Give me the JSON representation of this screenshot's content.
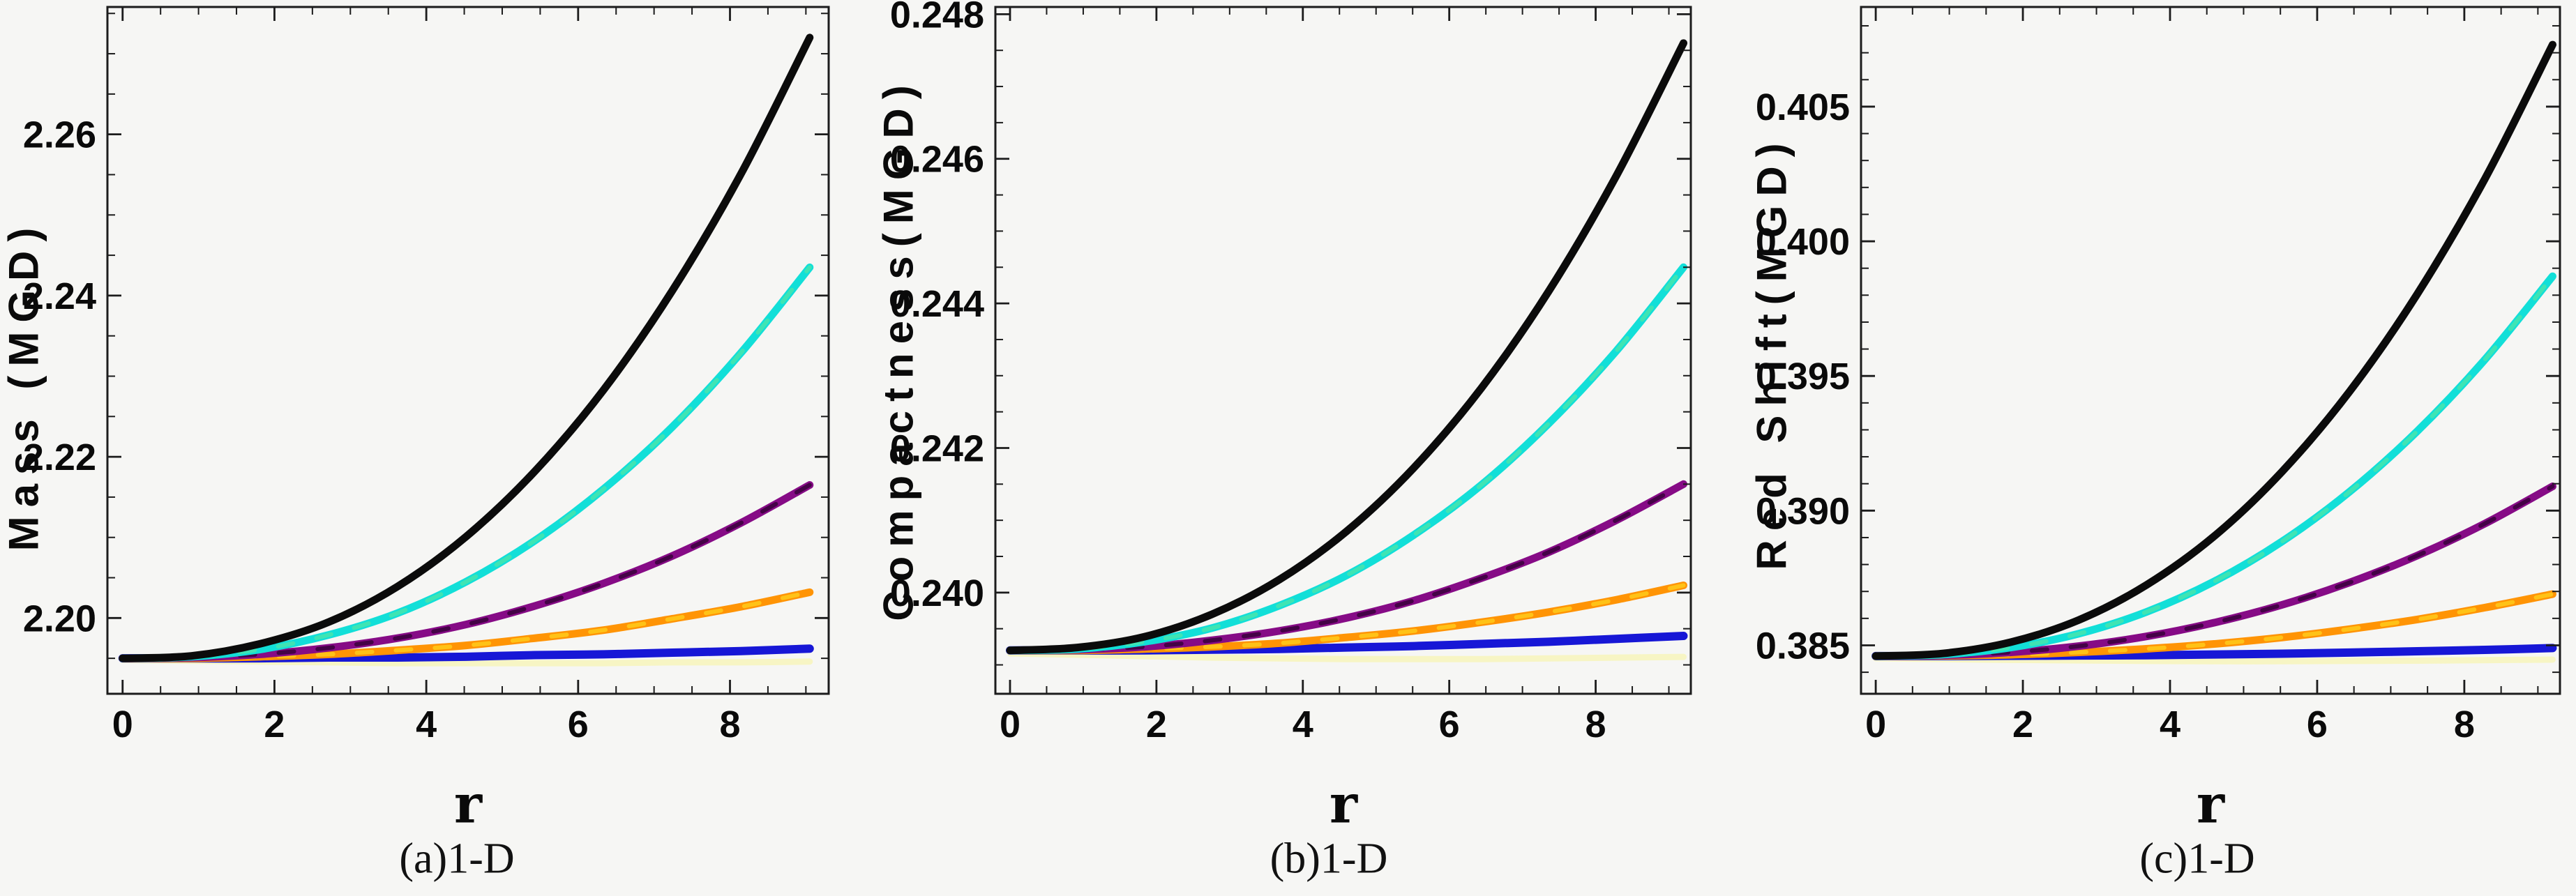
{
  "page": {
    "background": "#f6f6f4",
    "frame_color": "#1c1c1c",
    "text_color": "#0a0a0a"
  },
  "chart_data": [
    {
      "type": "line",
      "caption": "(a)1-D",
      "xlabel": "r",
      "ylabel": "Mass (MGD)",
      "legend": "none",
      "grid": false,
      "xlim": [
        -0.2,
        9.3
      ],
      "ylim": [
        2.1906,
        2.2758
      ],
      "xticks": {
        "major": [
          0,
          2,
          4,
          6,
          8
        ],
        "labels": [
          "0",
          "2",
          "4",
          "6",
          "8"
        ],
        "minor_step": 0.5,
        "major_step": 2
      },
      "yticks": {
        "major": [
          2.2,
          2.22,
          2.24,
          2.26
        ],
        "labels": [
          "2.20",
          "2.22",
          "2.24",
          "2.26"
        ],
        "minor_step": 0.005,
        "major_step": 0.02
      },
      "x": [
        0,
        0.905,
        1.81,
        2.715,
        3.62,
        4.525,
        5.43,
        6.335,
        7.24,
        8.145,
        9.05
      ],
      "series": [
        {
          "name": "pale-yellow-curve",
          "color": "#f7f5c4",
          "width": 9,
          "values": [
            2.1948,
            2.1947,
            2.1946,
            2.1945,
            2.1944,
            2.1944,
            2.1944,
            2.1944,
            2.1945,
            2.1945,
            2.1946
          ]
        },
        {
          "name": "blue-curve",
          "color": "#1717d6",
          "width": 12,
          "values": [
            2.195,
            2.195,
            2.195,
            2.1951,
            2.1951,
            2.1952,
            2.1954,
            2.1955,
            2.1957,
            2.1959,
            2.1962
          ]
        },
        {
          "name": "orange-curve",
          "color": "#ff9405",
          "width": 11,
          "overlay": "#ffd21e",
          "values": [
            2.195,
            2.195,
            2.1952,
            2.1955,
            2.196,
            2.1966,
            2.1975,
            2.1985,
            2.1999,
            2.2014,
            2.2032
          ]
        },
        {
          "name": "purple-curve",
          "color": "#860b86",
          "width": 11,
          "overlay": "#2e0030",
          "values": [
            2.195,
            2.1951,
            2.1955,
            2.1963,
            2.1975,
            2.1992,
            2.2015,
            2.2043,
            2.2077,
            2.2118,
            2.2165
          ]
        },
        {
          "name": "cyan-curve",
          "color": "#12dfd8",
          "width": 11,
          "overlay": "#4fe6a8",
          "values": [
            2.195,
            2.1952,
            2.1961,
            2.1979,
            2.2006,
            2.2045,
            2.2096,
            2.216,
            2.2237,
            2.2329,
            2.2435
          ]
        },
        {
          "name": "black-curve",
          "color": "#0b0b0b",
          "width": 11,
          "values": [
            2.195,
            2.1953,
            2.1968,
            2.1995,
            2.2039,
            2.2101,
            2.2182,
            2.2283,
            2.2406,
            2.2551,
            2.272
          ]
        }
      ]
    },
    {
      "type": "line",
      "caption": "(b)1-D",
      "xlabel": "r",
      "ylabel": "Compactness(MGD)",
      "legend": "none",
      "grid": false,
      "xlim": [
        -0.2,
        9.3
      ],
      "ylim": [
        0.2386,
        0.2481
      ],
      "xticks": {
        "major": [
          0,
          2,
          4,
          6,
          8
        ],
        "labels": [
          "0",
          "2",
          "4",
          "6",
          "8"
        ],
        "minor_step": 0.5,
        "major_step": 2
      },
      "yticks": {
        "major": [
          0.24,
          0.242,
          0.244,
          0.246,
          0.248
        ],
        "labels": [
          "0.240",
          "0.242",
          "0.244",
          "0.246",
          "0.248"
        ],
        "minor_step": 0.0005,
        "major_step": 0.002
      },
      "x": [
        0,
        0.92,
        1.84,
        2.76,
        3.68,
        4.6,
        5.52,
        6.44,
        7.36,
        8.28,
        9.2
      ],
      "series": [
        {
          "name": "pale-yellow-curve",
          "color": "#f7f5c4",
          "width": 9,
          "values": [
            0.23916,
            0.23914,
            0.23912,
            0.2391,
            0.23909,
            0.23908,
            0.23908,
            0.23908,
            0.23909,
            0.2391,
            0.23911
          ]
        },
        {
          "name": "blue-curve",
          "color": "#1717d6",
          "width": 12,
          "values": [
            0.2392,
            0.2392,
            0.2392,
            0.23921,
            0.23922,
            0.23924,
            0.23926,
            0.23929,
            0.23932,
            0.23936,
            0.2394
          ]
        },
        {
          "name": "orange-curve",
          "color": "#ff9405",
          "width": 11,
          "overlay": "#ffd21e",
          "values": [
            0.2392,
            0.2392,
            0.23922,
            0.23925,
            0.2393,
            0.23938,
            0.23947,
            0.23959,
            0.23973,
            0.2399,
            0.2401
          ]
        },
        {
          "name": "purple-curve",
          "color": "#860b86",
          "width": 11,
          "overlay": "#2e0030",
          "values": [
            0.2392,
            0.23921,
            0.23925,
            0.23934,
            0.23947,
            0.23965,
            0.23989,
            0.2402,
            0.24056,
            0.241,
            0.2415
          ]
        },
        {
          "name": "cyan-curve",
          "color": "#12dfd8",
          "width": 11,
          "overlay": "#4fe6a8",
          "values": [
            0.2392,
            0.23922,
            0.23932,
            0.23951,
            0.23982,
            0.24024,
            0.2408,
            0.24149,
            0.24234,
            0.24334,
            0.2445
          ]
        },
        {
          "name": "black-curve",
          "color": "#0b0b0b",
          "width": 11,
          "values": [
            0.2392,
            0.23924,
            0.23939,
            0.2397,
            0.24018,
            0.24085,
            0.24173,
            0.24283,
            0.24417,
            0.24576,
            0.2476
          ]
        }
      ]
    },
    {
      "type": "line",
      "caption": "(c)1-D",
      "xlabel": "r",
      "ylabel": "Red Shift(MGD)",
      "legend": "none",
      "grid": false,
      "xlim": [
        -0.2,
        9.3
      ],
      "ylim": [
        0.3832,
        0.4087
      ],
      "xticks": {
        "major": [
          0,
          2,
          4,
          6,
          8
        ],
        "labels": [
          "0",
          "2",
          "4",
          "6",
          "8"
        ],
        "minor_step": 0.5,
        "major_step": 2
      },
      "yticks": {
        "major": [
          0.385,
          0.39,
          0.395,
          0.4,
          0.405
        ],
        "labels": [
          "0.385",
          "0.390",
          "0.395",
          "0.400",
          "0.405"
        ],
        "minor_step": 0.001,
        "major_step": 0.005
      },
      "x": [
        0,
        0.92,
        1.84,
        2.76,
        3.68,
        4.6,
        5.52,
        6.44,
        7.36,
        8.28,
        9.2
      ],
      "series": [
        {
          "name": "pale-yellow-curve",
          "color": "#f7f5c4",
          "width": 9,
          "values": [
            0.38452,
            0.38449,
            0.38446,
            0.38444,
            0.38442,
            0.38441,
            0.38441,
            0.38442,
            0.38443,
            0.38445,
            0.38447
          ]
        },
        {
          "name": "blue-curve",
          "color": "#1717d6",
          "width": 12,
          "values": [
            0.3846,
            0.3846,
            0.38461,
            0.38462,
            0.38463,
            0.38466,
            0.38469,
            0.38473,
            0.38478,
            0.38483,
            0.3849
          ]
        },
        {
          "name": "orange-curve",
          "color": "#ff9405",
          "width": 11,
          "overlay": "#ffd21e",
          "values": [
            0.3846,
            0.38461,
            0.38465,
            0.38474,
            0.38487,
            0.38505,
            0.38529,
            0.3856,
            0.38596,
            0.3864,
            0.3869
          ]
        },
        {
          "name": "purple-curve",
          "color": "#860b86",
          "width": 11,
          "overlay": "#2e0030",
          "values": [
            0.3846,
            0.38463,
            0.38474,
            0.38497,
            0.38533,
            0.38584,
            0.3865,
            0.38733,
            0.38833,
            0.38952,
            0.3909
          ]
        },
        {
          "name": "cyan-curve",
          "color": "#12dfd8",
          "width": 11,
          "overlay": "#4fe6a8",
          "values": [
            0.3846,
            0.38466,
            0.38492,
            0.38543,
            0.38624,
            0.38737,
            0.38885,
            0.3907,
            0.39295,
            0.39561,
            0.3987
          ]
        },
        {
          "name": "black-curve",
          "color": "#0b0b0b",
          "width": 11,
          "values": [
            0.3846,
            0.3847,
            0.38512,
            0.38594,
            0.38724,
            0.38905,
            0.39144,
            0.39442,
            0.39804,
            0.40232,
            0.4073
          ]
        }
      ]
    }
  ]
}
